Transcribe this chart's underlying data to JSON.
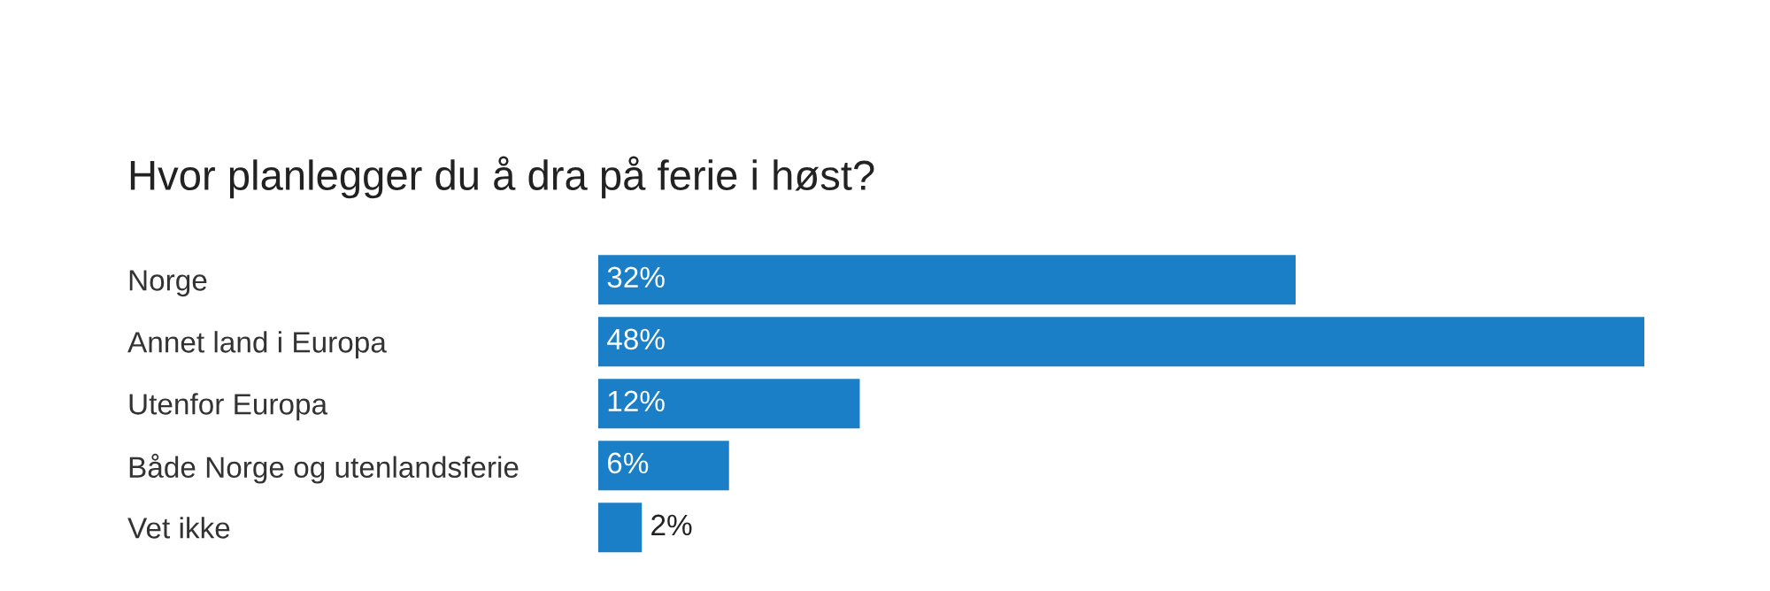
{
  "chart_data": {
    "type": "bar",
    "orientation": "horizontal",
    "title": "Hvor planlegger du å dra på ferie i høst?",
    "categories": [
      "Norge",
      "Annet land i Europa",
      "Utenfor Europa",
      "Både Norge og utenlandsferie",
      "Vet ikke"
    ],
    "values": [
      32,
      48,
      12,
      6,
      2
    ],
    "value_labels": [
      "32%",
      "48%",
      "12%",
      "6%",
      "2%"
    ],
    "color": "#1a7fc6",
    "grid": false,
    "legend": false
  }
}
